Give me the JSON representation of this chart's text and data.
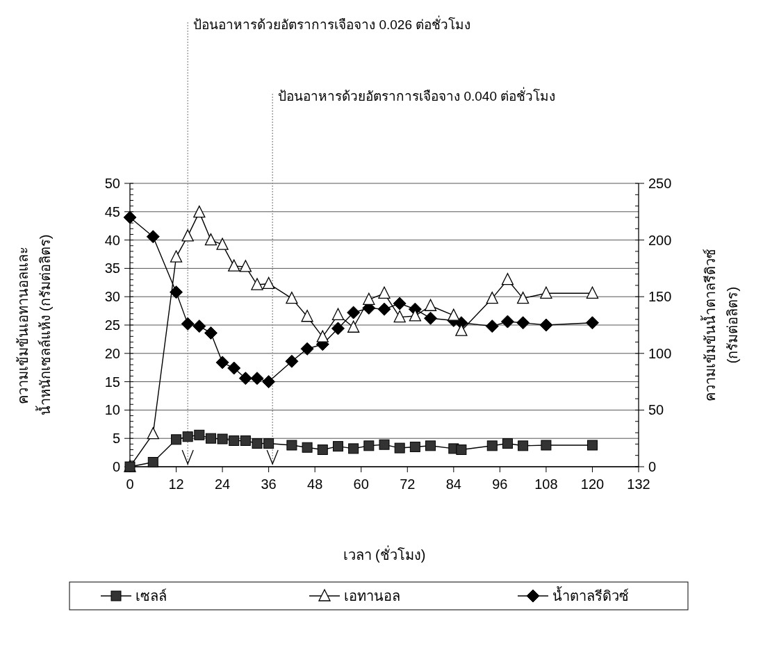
{
  "chart_data": {
    "type": "line",
    "xlabel": "เวลา (ชั่วโมง)",
    "ylabel": "ความเข้มข้นเอทานอลและ\nน้ำหนักเซลล์แห้ง (กรัมต่อลิตร)",
    "y2label": "ความเข้มข้นน้ำตาลรีดิวซ์\n(กรัมต่อลิตร)",
    "x": [
      0,
      6,
      12,
      15,
      18,
      21,
      24,
      27,
      30,
      33,
      36,
      42,
      46,
      50,
      54,
      58,
      62,
      66,
      70,
      74,
      78,
      84,
      86,
      94,
      98,
      102,
      108,
      120
    ],
    "series": [
      {
        "name": "เซลล์",
        "color": "#000000",
        "marker": "square",
        "values": [
          0,
          0.8,
          4.8,
          5.3,
          5.6,
          5.0,
          4.9,
          4.6,
          4.6,
          4.1,
          4.1,
          3.8,
          3.4,
          3.0,
          3.6,
          3.2,
          3.7,
          3.9,
          3.3,
          3.5,
          3.7,
          3.2,
          3.0,
          3.7,
          4.1,
          3.7,
          3.8,
          3.8
        ]
      },
      {
        "name": "เอทานอล",
        "color": "#000000",
        "marker": "triangle",
        "values": [
          0,
          5.8,
          37.0,
          40.7,
          44.9,
          40.0,
          39.2,
          35.4,
          35.3,
          32.1,
          32.3,
          29.7,
          26.5,
          22.9,
          26.8,
          24.6,
          29.5,
          30.6,
          26.4,
          26.6,
          28.4,
          26.7,
          24.0,
          29.7,
          33.0,
          29.7,
          30.6,
          30.6
        ]
      },
      {
        "name": "น้ำตาลรีดิวซ์",
        "color": "#000000",
        "marker": "diamond",
        "axis": "y2",
        "values": [
          220,
          203,
          154,
          126,
          124,
          118,
          92,
          87,
          78,
          78,
          75,
          93,
          104,
          108,
          122,
          136,
          140,
          139,
          144,
          139,
          131,
          129,
          127,
          124,
          128,
          127,
          125,
          127
        ]
      }
    ],
    "xlim": [
      0,
      132
    ],
    "xticks": [
      0,
      12,
      24,
      36,
      48,
      60,
      72,
      84,
      96,
      108,
      120,
      132
    ],
    "ylim": [
      0,
      50
    ],
    "yticks": [
      0,
      5,
      10,
      15,
      20,
      25,
      30,
      35,
      40,
      45,
      50
    ],
    "y2lim": [
      0,
      250
    ],
    "y2ticks": [
      0,
      50,
      100,
      150,
      200,
      250
    ],
    "ref_lines": [
      {
        "axis": "x",
        "value": 15,
        "label": "ป้อนอาหารด้วยอัตราการเจือจาง 0.026  ต่อชั่วโมง",
        "color": "#888888",
        "line_style": "dotted"
      },
      {
        "axis": "x",
        "value": 37,
        "label": "ป้อนอาหารด้วยอัตราการเจือจาง 0.040 ต่อชั่วโมง",
        "color": "#888888",
        "line_style": "dotted"
      }
    ],
    "grid": "y",
    "legend": "bottom"
  }
}
